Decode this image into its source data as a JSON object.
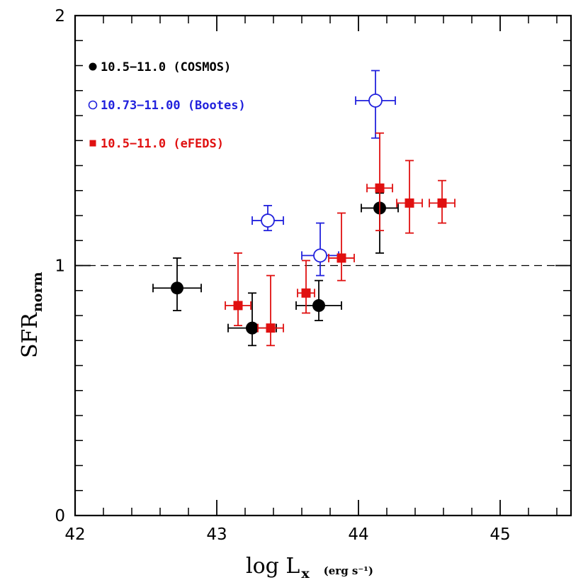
{
  "chart_data": {
    "type": "scatter",
    "xlabel": {
      "main": "log L",
      "subscript": "x",
      "units": "(erg s⁻¹)"
    },
    "ylabel": {
      "main": "SFR",
      "subscript": "norm"
    },
    "xlim": [
      42,
      45.5
    ],
    "ylim": [
      0,
      2
    ],
    "x_major_ticks": [
      42,
      43,
      44,
      45
    ],
    "x_tick_labels": [
      "42",
      "43",
      "44",
      "45"
    ],
    "x_minor_step": 0.2,
    "y_major_ticks": [
      0,
      1,
      2
    ],
    "y_tick_labels": [
      "0",
      "1",
      "2"
    ],
    "y_minor_step": 0.1,
    "reference_line": {
      "y": 1,
      "style": "dashed"
    },
    "series": [
      {
        "name": "10.5−11.0 (COSMOS)",
        "color": "#000000",
        "marker": "filled-circle",
        "points": [
          {
            "x": 42.72,
            "y": 0.91,
            "xerr": [
              0.17,
              0.17
            ],
            "yerr": [
              0.09,
              0.12
            ]
          },
          {
            "x": 43.25,
            "y": 0.75,
            "xerr": [
              0.17,
              0.17
            ],
            "yerr": [
              0.07,
              0.14
            ]
          },
          {
            "x": 43.72,
            "y": 0.84,
            "xerr": [
              0.16,
              0.16
            ],
            "yerr": [
              0.06,
              0.1
            ]
          },
          {
            "x": 44.15,
            "y": 1.23,
            "xerr": [
              0.13,
              0.13
            ],
            "yerr": [
              0.18,
              0.06
            ]
          }
        ]
      },
      {
        "name": "10.73−11.00 (Bootes)",
        "color": "#2222dd",
        "marker": "open-circle",
        "points": [
          {
            "x": 43.36,
            "y": 1.18,
            "xerr": [
              0.11,
              0.11
            ],
            "yerr": [
              0.04,
              0.06
            ]
          },
          {
            "x": 43.73,
            "y": 1.04,
            "xerr": [
              0.13,
              0.13
            ],
            "yerr": [
              0.08,
              0.13
            ]
          },
          {
            "x": 44.12,
            "y": 1.66,
            "xerr": [
              0.14,
              0.14
            ],
            "yerr": [
              0.15,
              0.12
            ]
          }
        ]
      },
      {
        "name": "10.5−11.0 (eFEDS)",
        "color": "#e01010",
        "marker": "filled-square",
        "points": [
          {
            "x": 43.15,
            "y": 0.84,
            "xerr": [
              0.09,
              0.09
            ],
            "yerr": [
              0.08,
              0.21
            ]
          },
          {
            "x": 43.38,
            "y": 0.75,
            "xerr": [
              0.09,
              0.09
            ],
            "yerr": [
              0.07,
              0.21
            ]
          },
          {
            "x": 43.63,
            "y": 0.89,
            "xerr": [
              0.06,
              0.06
            ],
            "yerr": [
              0.08,
              0.13
            ]
          },
          {
            "x": 43.88,
            "y": 1.03,
            "xerr": [
              0.09,
              0.09
            ],
            "yerr": [
              0.09,
              0.18
            ]
          },
          {
            "x": 44.15,
            "y": 1.31,
            "xerr": [
              0.09,
              0.09
            ],
            "yerr": [
              0.17,
              0.22
            ]
          },
          {
            "x": 44.36,
            "y": 1.25,
            "xerr": [
              0.09,
              0.09
            ],
            "yerr": [
              0.12,
              0.17
            ]
          },
          {
            "x": 44.59,
            "y": 1.25,
            "xerr": [
              0.09,
              0.09
            ],
            "yerr": [
              0.08,
              0.09
            ]
          }
        ]
      }
    ],
    "legend_position": "top-left"
  }
}
